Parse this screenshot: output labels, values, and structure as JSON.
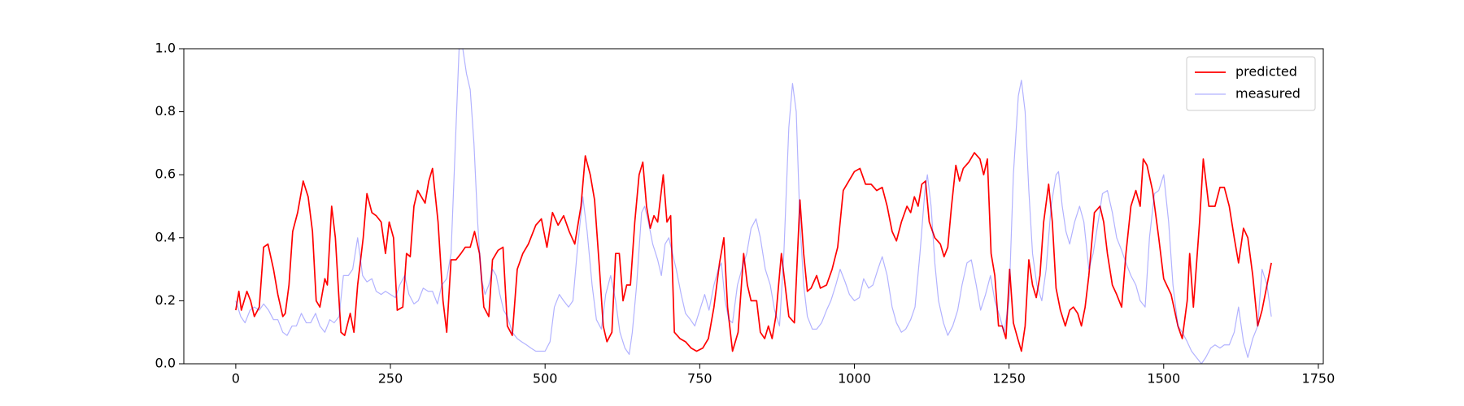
{
  "chart_data": {
    "type": "line",
    "legend": "upper right",
    "grid": false,
    "xlim": [
      -84,
      1758
    ],
    "xticks": [
      0,
      250,
      500,
      750,
      1000,
      1250,
      1500,
      1750
    ],
    "ylim": [
      0,
      1
    ],
    "yticks": [
      {
        "value": 0,
        "label": "0.0"
      },
      0.2,
      0.4,
      0.6,
      0.8,
      {
        "value": 1,
        "label": "1.0"
      }
    ],
    "series": [
      {
        "name": "predicted",
        "color": "#ff0000",
        "alpha": 1,
        "linewidth": 1.7,
        "x": [
          0,
          5,
          9,
          18,
          24,
          30,
          38,
          45,
          52,
          61,
          68,
          76,
          80,
          86,
          92,
          100,
          109,
          117,
          124,
          130,
          136,
          144,
          148,
          155,
          161,
          170,
          176,
          185,
          191,
          197,
          206,
          212,
          220,
          227,
          235,
          242,
          248,
          255,
          261,
          270,
          276,
          282,
          288,
          294,
          300,
          306,
          312,
          318,
          327,
          335,
          341,
          348,
          356,
          364,
          371,
          379,
          386,
          394,
          401,
          409,
          415,
          424,
          432,
          439,
          447,
          455,
          464,
          473,
          485,
          494,
          503,
          512,
          521,
          530,
          539,
          548,
          558,
          565,
          573,
          580,
          588,
          594,
          600,
          608,
          614,
          620,
          626,
          632,
          638,
          645,
          652,
          658,
          664,
          670,
          676,
          682,
          691,
          697,
          703,
          709,
          718,
          727,
          736,
          745,
          755,
          764,
          773,
          782,
          789,
          795,
          803,
          812,
          821,
          827,
          833,
          842,
          848,
          855,
          861,
          867,
          873,
          882,
          888,
          894,
          903,
          912,
          918,
          924,
          930,
          939,
          945,
          955,
          964,
          973,
          982,
          991,
          1000,
          1009,
          1018,
          1027,
          1036,
          1045,
          1053,
          1061,
          1068,
          1076,
          1085,
          1091,
          1097,
          1103,
          1109,
          1115,
          1121,
          1130,
          1139,
          1145,
          1151,
          1157,
          1164,
          1170,
          1176,
          1185,
          1194,
          1203,
          1209,
          1215,
          1221,
          1227,
          1233,
          1239,
          1245,
          1251,
          1257,
          1264,
          1270,
          1276,
          1282,
          1288,
          1294,
          1300,
          1306,
          1314,
          1320,
          1326,
          1333,
          1341,
          1348,
          1354,
          1361,
          1367,
          1373,
          1379,
          1388,
          1397,
          1403,
          1409,
          1417,
          1424,
          1432,
          1439,
          1447,
          1455,
          1462,
          1467,
          1473,
          1482,
          1492,
          1500,
          1512,
          1523,
          1530,
          1538,
          1542,
          1548,
          1558,
          1564,
          1573,
          1583,
          1591,
          1598,
          1606,
          1614,
          1621,
          1629,
          1636,
          1644,
          1652,
          1659,
          1667,
          1674
        ],
        "values": [
          0.17,
          0.23,
          0.17,
          0.23,
          0.2,
          0.15,
          0.18,
          0.37,
          0.38,
          0.3,
          0.22,
          0.15,
          0.16,
          0.25,
          0.42,
          0.48,
          0.58,
          0.53,
          0.42,
          0.2,
          0.18,
          0.27,
          0.25,
          0.5,
          0.4,
          0.1,
          0.09,
          0.16,
          0.1,
          0.25,
          0.4,
          0.54,
          0.48,
          0.47,
          0.45,
          0.35,
          0.45,
          0.4,
          0.17,
          0.18,
          0.35,
          0.34,
          0.5,
          0.55,
          0.53,
          0.51,
          0.58,
          0.62,
          0.45,
          0.2,
          0.1,
          0.33,
          0.33,
          0.35,
          0.37,
          0.37,
          0.42,
          0.35,
          0.18,
          0.15,
          0.33,
          0.36,
          0.37,
          0.12,
          0.09,
          0.3,
          0.35,
          0.38,
          0.44,
          0.46,
          0.37,
          0.48,
          0.44,
          0.47,
          0.42,
          0.38,
          0.5,
          0.66,
          0.6,
          0.52,
          0.3,
          0.12,
          0.07,
          0.1,
          0.35,
          0.35,
          0.2,
          0.25,
          0.25,
          0.45,
          0.6,
          0.64,
          0.5,
          0.43,
          0.47,
          0.45,
          0.6,
          0.45,
          0.47,
          0.1,
          0.08,
          0.07,
          0.05,
          0.04,
          0.05,
          0.08,
          0.18,
          0.32,
          0.4,
          0.18,
          0.04,
          0.1,
          0.35,
          0.25,
          0.2,
          0.2,
          0.1,
          0.08,
          0.12,
          0.08,
          0.15,
          0.35,
          0.25,
          0.15,
          0.13,
          0.52,
          0.35,
          0.23,
          0.24,
          0.28,
          0.24,
          0.25,
          0.3,
          0.37,
          0.55,
          0.58,
          0.61,
          0.62,
          0.57,
          0.57,
          0.55,
          0.56,
          0.5,
          0.42,
          0.39,
          0.45,
          0.5,
          0.48,
          0.53,
          0.5,
          0.57,
          0.58,
          0.45,
          0.4,
          0.38,
          0.34,
          0.37,
          0.5,
          0.63,
          0.58,
          0.62,
          0.64,
          0.67,
          0.65,
          0.6,
          0.65,
          0.35,
          0.28,
          0.12,
          0.12,
          0.08,
          0.3,
          0.13,
          0.08,
          0.04,
          0.12,
          0.33,
          0.25,
          0.21,
          0.28,
          0.45,
          0.57,
          0.45,
          0.24,
          0.17,
          0.12,
          0.17,
          0.18,
          0.16,
          0.12,
          0.18,
          0.28,
          0.48,
          0.5,
          0.45,
          0.35,
          0.25,
          0.22,
          0.18,
          0.35,
          0.5,
          0.55,
          0.5,
          0.65,
          0.63,
          0.55,
          0.4,
          0.27,
          0.22,
          0.12,
          0.08,
          0.2,
          0.35,
          0.18,
          0.45,
          0.65,
          0.5,
          0.5,
          0.56,
          0.56,
          0.5,
          0.4,
          0.32,
          0.43,
          0.4,
          0.28,
          0.12,
          0.17,
          0.25,
          0.32
        ]
      },
      {
        "name": "measured",
        "color": "#0000ff",
        "alpha": 0.3,
        "linewidth": 1.2,
        "x": [
          0,
          8,
          15,
          23,
          30,
          38,
          45,
          53,
          61,
          68,
          76,
          83,
          91,
          98,
          106,
          114,
          121,
          129,
          136,
          144,
          152,
          159,
          167,
          174,
          182,
          189,
          197,
          205,
          212,
          220,
          227,
          235,
          242,
          250,
          258,
          265,
          273,
          280,
          288,
          295,
          303,
          311,
          318,
          326,
          333,
          341,
          348,
          356,
          361,
          367,
          373,
          379,
          385,
          391,
          397,
          403,
          409,
          415,
          421,
          427,
          433,
          439,
          447,
          455,
          462,
          470,
          477,
          485,
          492,
          500,
          508,
          515,
          523,
          530,
          538,
          545,
          553,
          561,
          568,
          576,
          583,
          591,
          598,
          606,
          614,
          621,
          629,
          636,
          641,
          648,
          656,
          661,
          667,
          674,
          682,
          688,
          694,
          700,
          706,
          712,
          720,
          727,
          735,
          742,
          750,
          758,
          765,
          773,
          780,
          785,
          791,
          797,
          803,
          811,
          818,
          826,
          833,
          841,
          848,
          856,
          864,
          871,
          879,
          886,
          894,
          900,
          906,
          912,
          918,
          924,
          932,
          939,
          947,
          955,
          962,
          970,
          977,
          985,
          992,
          1000,
          1008,
          1015,
          1023,
          1030,
          1038,
          1045,
          1053,
          1061,
          1068,
          1076,
          1083,
          1091,
          1098,
          1106,
          1114,
          1118,
          1124,
          1130,
          1136,
          1144,
          1151,
          1159,
          1167,
          1174,
          1182,
          1189,
          1197,
          1204,
          1212,
          1220,
          1227,
          1235,
          1242,
          1250,
          1257,
          1265,
          1270,
          1276,
          1282,
          1288,
          1295,
          1303,
          1310,
          1318,
          1326,
          1330,
          1336,
          1342,
          1348,
          1356,
          1364,
          1371,
          1379,
          1386,
          1394,
          1401,
          1409,
          1417,
          1424,
          1432,
          1439,
          1447,
          1455,
          1462,
          1470,
          1477,
          1485,
          1492,
          1500,
          1508,
          1515,
          1523,
          1530,
          1538,
          1545,
          1553,
          1561,
          1568,
          1576,
          1583,
          1591,
          1598,
          1606,
          1614,
          1621,
          1629,
          1636,
          1644,
          1652,
          1659,
          1667,
          1674
        ],
        "values": [
          0.2,
          0.15,
          0.13,
          0.17,
          0.18,
          0.17,
          0.19,
          0.17,
          0.14,
          0.14,
          0.1,
          0.09,
          0.12,
          0.12,
          0.16,
          0.13,
          0.13,
          0.16,
          0.12,
          0.1,
          0.14,
          0.13,
          0.15,
          0.28,
          0.28,
          0.3,
          0.4,
          0.28,
          0.26,
          0.27,
          0.23,
          0.22,
          0.23,
          0.22,
          0.21,
          0.25,
          0.28,
          0.22,
          0.19,
          0.2,
          0.24,
          0.23,
          0.23,
          0.19,
          0.25,
          0.27,
          0.35,
          0.75,
          1.0,
          1.0,
          0.92,
          0.87,
          0.7,
          0.45,
          0.27,
          0.22,
          0.25,
          0.3,
          0.28,
          0.22,
          0.17,
          0.15,
          0.1,
          0.08,
          0.07,
          0.06,
          0.05,
          0.04,
          0.04,
          0.04,
          0.07,
          0.18,
          0.22,
          0.2,
          0.18,
          0.2,
          0.38,
          0.53,
          0.42,
          0.25,
          0.14,
          0.11,
          0.22,
          0.28,
          0.2,
          0.1,
          0.05,
          0.03,
          0.1,
          0.25,
          0.48,
          0.5,
          0.45,
          0.38,
          0.33,
          0.28,
          0.38,
          0.4,
          0.35,
          0.3,
          0.22,
          0.16,
          0.14,
          0.12,
          0.17,
          0.22,
          0.17,
          0.25,
          0.3,
          0.32,
          0.2,
          0.14,
          0.13,
          0.25,
          0.3,
          0.35,
          0.43,
          0.46,
          0.4,
          0.3,
          0.25,
          0.17,
          0.12,
          0.35,
          0.75,
          0.89,
          0.8,
          0.45,
          0.25,
          0.15,
          0.11,
          0.11,
          0.13,
          0.17,
          0.2,
          0.25,
          0.3,
          0.26,
          0.22,
          0.2,
          0.21,
          0.27,
          0.24,
          0.25,
          0.3,
          0.34,
          0.28,
          0.18,
          0.13,
          0.1,
          0.11,
          0.14,
          0.18,
          0.35,
          0.55,
          0.6,
          0.5,
          0.32,
          0.2,
          0.13,
          0.09,
          0.12,
          0.17,
          0.25,
          0.32,
          0.33,
          0.25,
          0.17,
          0.22,
          0.28,
          0.2,
          0.15,
          0.1,
          0.2,
          0.6,
          0.85,
          0.9,
          0.8,
          0.55,
          0.35,
          0.25,
          0.2,
          0.3,
          0.5,
          0.6,
          0.61,
          0.5,
          0.42,
          0.38,
          0.45,
          0.5,
          0.45,
          0.3,
          0.35,
          0.45,
          0.54,
          0.55,
          0.48,
          0.4,
          0.36,
          0.32,
          0.28,
          0.25,
          0.2,
          0.18,
          0.4,
          0.54,
          0.55,
          0.6,
          0.45,
          0.25,
          0.12,
          0.1,
          0.07,
          0.04,
          0.02,
          0,
          0.02,
          0.05,
          0.06,
          0.05,
          0.06,
          0.06,
          0.1,
          0.18,
          0.07,
          0.02,
          0.08,
          0.12,
          0.3,
          0.25,
          0.15
        ]
      }
    ]
  }
}
